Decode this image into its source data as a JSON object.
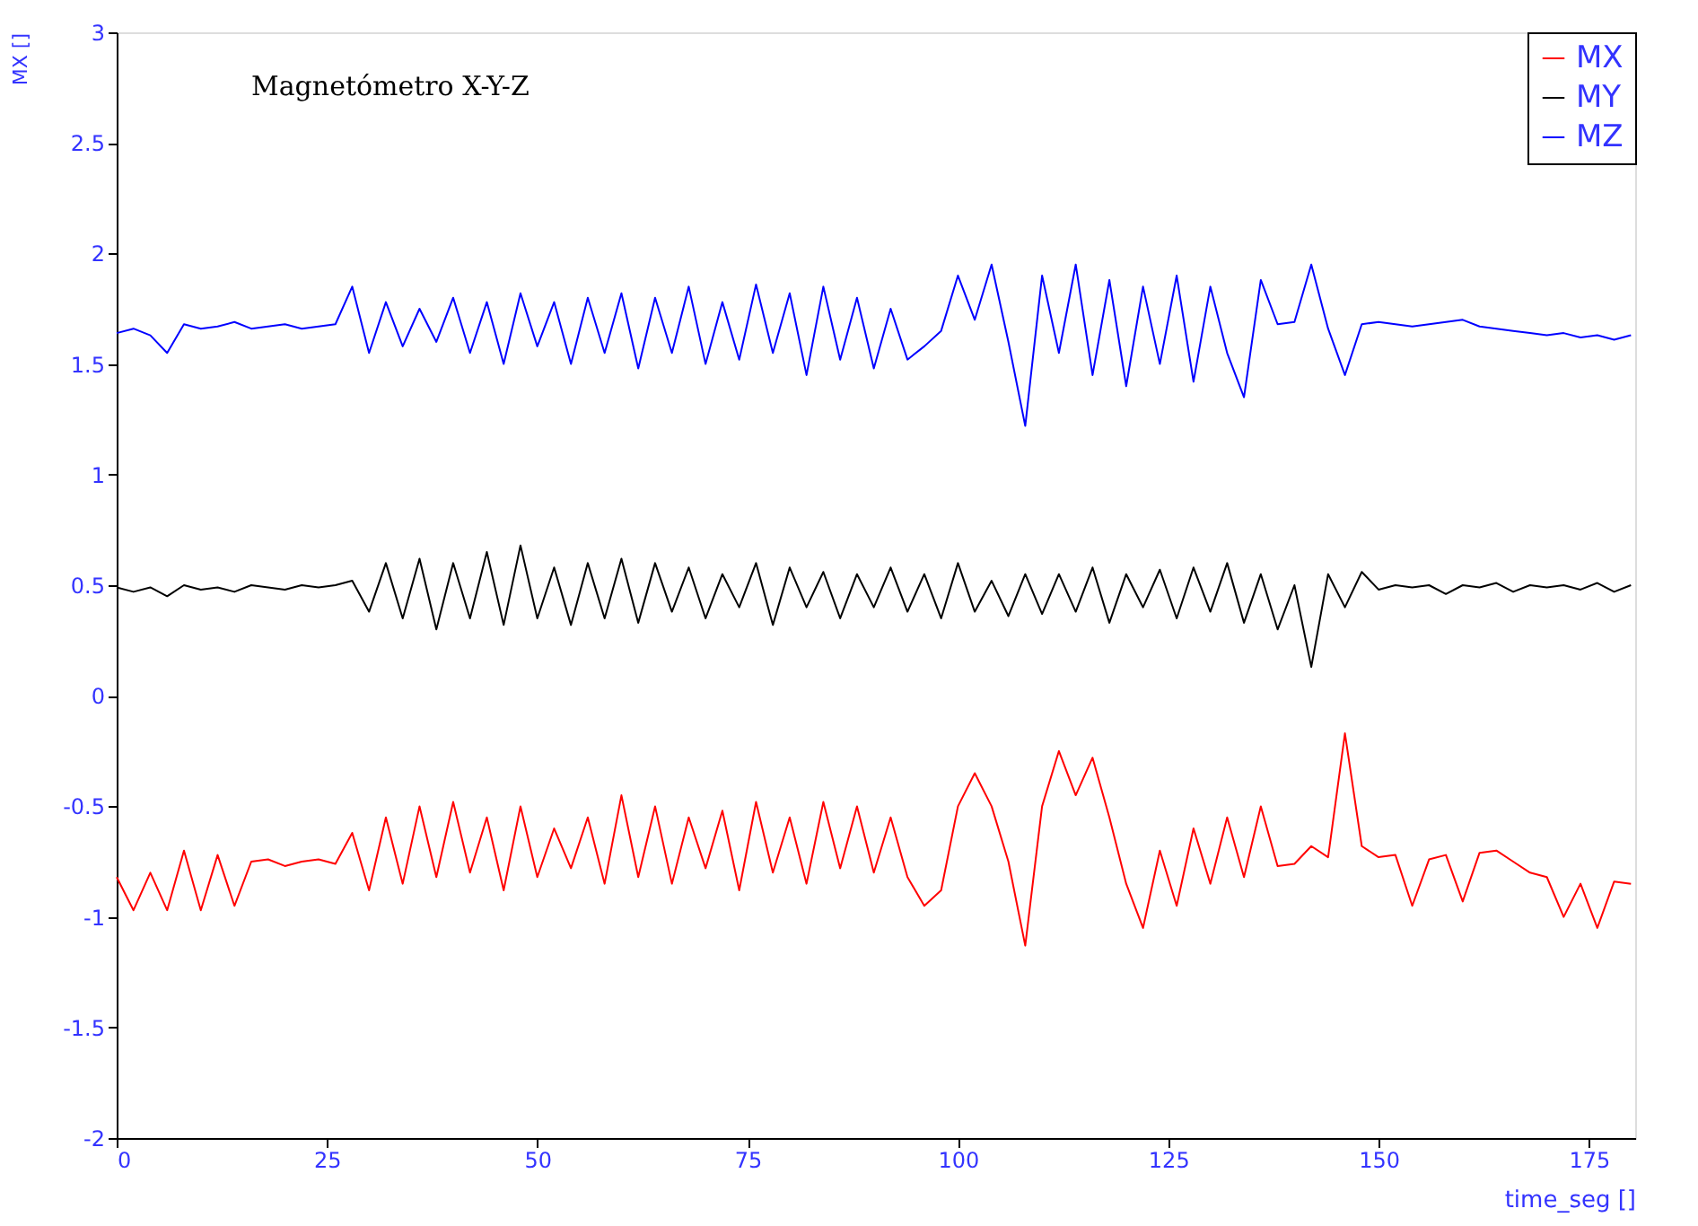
{
  "chart_data": {
    "type": "line",
    "title": "Magnetómetro  X-Y-Z",
    "xlabel": "time_seg []",
    "ylabel": "MX []",
    "x": [
      0,
      2,
      4,
      6,
      8,
      10,
      12,
      14,
      16,
      18,
      20,
      22,
      24,
      26,
      28,
      30,
      32,
      34,
      36,
      38,
      40,
      42,
      44,
      46,
      48,
      50,
      52,
      54,
      56,
      58,
      60,
      62,
      64,
      66,
      68,
      70,
      72,
      74,
      76,
      78,
      80,
      82,
      84,
      86,
      88,
      90,
      92,
      94,
      96,
      98,
      100,
      102,
      104,
      106,
      108,
      110,
      112,
      114,
      116,
      118,
      120,
      122,
      124,
      126,
      128,
      130,
      132,
      134,
      136,
      138,
      140,
      142,
      144,
      146,
      148,
      150,
      152,
      154,
      156,
      158,
      160,
      162,
      164,
      166,
      168,
      170,
      172,
      174,
      176,
      178,
      180
    ],
    "series": [
      {
        "name": "MX",
        "color": "#ff0000",
        "values": [
          -0.82,
          -0.97,
          -0.8,
          -0.97,
          -0.7,
          -0.97,
          -0.72,
          -0.95,
          -0.75,
          -0.74,
          -0.77,
          -0.75,
          -0.74,
          -0.76,
          -0.62,
          -0.88,
          -0.55,
          -0.85,
          -0.5,
          -0.82,
          -0.48,
          -0.8,
          -0.55,
          -0.88,
          -0.5,
          -0.82,
          -0.6,
          -0.78,
          -0.55,
          -0.85,
          -0.45,
          -0.82,
          -0.5,
          -0.85,
          -0.55,
          -0.78,
          -0.52,
          -0.88,
          -0.48,
          -0.8,
          -0.55,
          -0.85,
          -0.48,
          -0.78,
          -0.5,
          -0.8,
          -0.55,
          -0.82,
          -0.95,
          -0.88,
          -0.5,
          -0.35,
          -0.5,
          -0.75,
          -1.13,
          -0.5,
          -0.25,
          -0.45,
          -0.28,
          -0.55,
          -0.85,
          -1.05,
          -0.7,
          -0.95,
          -0.6,
          -0.85,
          -0.55,
          -0.82,
          -0.5,
          -0.77,
          -0.76,
          -0.68,
          -0.73,
          -0.17,
          -0.68,
          -0.73,
          -0.72,
          -0.95,
          -0.74,
          -0.72,
          -0.93,
          -0.71,
          -0.7,
          -0.75,
          -0.8,
          -0.82,
          -1.0,
          -0.85,
          -1.05,
          -0.84,
          -0.85
        ]
      },
      {
        "name": "MY",
        "color": "#000000",
        "values": [
          0.49,
          0.47,
          0.49,
          0.45,
          0.5,
          0.48,
          0.49,
          0.47,
          0.5,
          0.49,
          0.48,
          0.5,
          0.49,
          0.5,
          0.52,
          0.38,
          0.6,
          0.35,
          0.62,
          0.3,
          0.6,
          0.35,
          0.65,
          0.32,
          0.68,
          0.35,
          0.58,
          0.32,
          0.6,
          0.35,
          0.62,
          0.33,
          0.6,
          0.38,
          0.58,
          0.35,
          0.55,
          0.4,
          0.6,
          0.32,
          0.58,
          0.4,
          0.56,
          0.35,
          0.55,
          0.4,
          0.58,
          0.38,
          0.55,
          0.35,
          0.6,
          0.38,
          0.52,
          0.36,
          0.55,
          0.37,
          0.55,
          0.38,
          0.58,
          0.33,
          0.55,
          0.4,
          0.57,
          0.35,
          0.58,
          0.38,
          0.6,
          0.33,
          0.55,
          0.3,
          0.5,
          0.13,
          0.55,
          0.4,
          0.56,
          0.48,
          0.5,
          0.49,
          0.5,
          0.46,
          0.5,
          0.49,
          0.51,
          0.47,
          0.5,
          0.49,
          0.5,
          0.48,
          0.51,
          0.47,
          0.5
        ]
      },
      {
        "name": "MZ",
        "color": "#0000ff",
        "values": [
          1.64,
          1.66,
          1.63,
          1.55,
          1.68,
          1.66,
          1.67,
          1.69,
          1.66,
          1.67,
          1.68,
          1.66,
          1.67,
          1.68,
          1.85,
          1.55,
          1.78,
          1.58,
          1.75,
          1.6,
          1.8,
          1.55,
          1.78,
          1.5,
          1.82,
          1.58,
          1.78,
          1.5,
          1.8,
          1.55,
          1.82,
          1.48,
          1.8,
          1.55,
          1.85,
          1.5,
          1.78,
          1.52,
          1.86,
          1.55,
          1.82,
          1.45,
          1.85,
          1.52,
          1.8,
          1.48,
          1.75,
          1.52,
          1.58,
          1.65,
          1.9,
          1.7,
          1.95,
          1.6,
          1.22,
          1.9,
          1.55,
          1.95,
          1.45,
          1.88,
          1.4,
          1.85,
          1.5,
          1.9,
          1.42,
          1.85,
          1.55,
          1.35,
          1.88,
          1.68,
          1.69,
          1.95,
          1.66,
          1.45,
          1.68,
          1.69,
          1.68,
          1.67,
          1.68,
          1.69,
          1.7,
          1.67,
          1.66,
          1.65,
          1.64,
          1.63,
          1.64,
          1.62,
          1.63,
          1.61,
          1.63
        ]
      }
    ],
    "xlim": [
      0,
      180.5
    ],
    "xticks": [
      0,
      25,
      50,
      75,
      100,
      125,
      150,
      175
    ],
    "ylim": [
      -2,
      3
    ],
    "yticks": [
      -2,
      -1.5,
      -1,
      -0.5,
      0,
      0.5,
      1,
      1.5,
      2,
      2.5,
      3
    ],
    "grid": false,
    "legend": "top right",
    "marker": "none",
    "line_style": "solid"
  }
}
